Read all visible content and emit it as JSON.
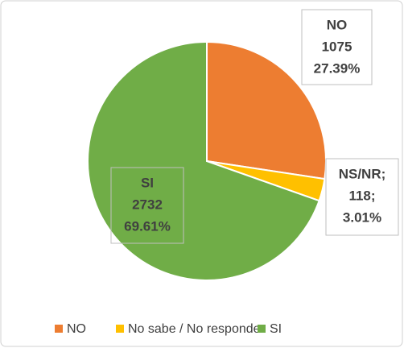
{
  "chart_data": {
    "type": "pie",
    "categories": [
      "NO",
      "No sabe / No responde",
      "SI"
    ],
    "values": [
      1075,
      118,
      2732
    ],
    "colors": [
      "#ED7D31",
      "#FFC000",
      "#70AD47"
    ],
    "label_names": [
      "NO",
      "NS/NR;",
      "SI"
    ],
    "value_labels": [
      "1075",
      "118;",
      "2732"
    ],
    "percent_labels": [
      "27.39%",
      "3.01%",
      "69.61%"
    ],
    "legend": "bottom"
  }
}
